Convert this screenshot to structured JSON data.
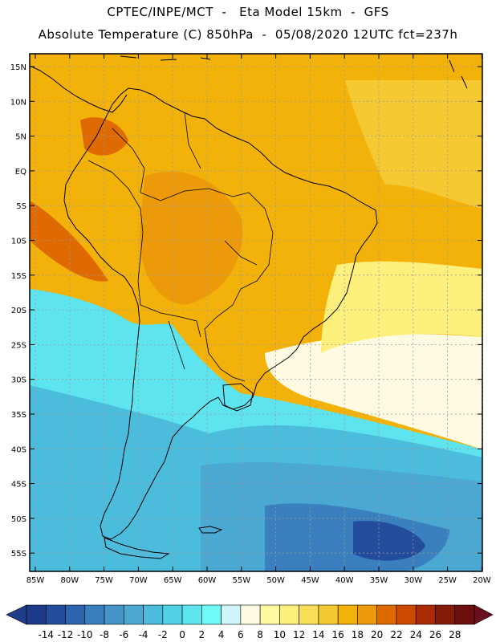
{
  "title": {
    "line1": "CPTEC/INPE/MCT  -   Eta Model 15km  -  GFS",
    "line2": "Absolute Temperature (C) 850hPa  -  05/08/2020 12UTC fct=237h"
  },
  "map": {
    "lat_labels": [
      "15N",
      "10N",
      "5N",
      "EQ",
      "5S",
      "10S",
      "15S",
      "20S",
      "25S",
      "30S",
      "35S",
      "40S",
      "45S",
      "50S",
      "55S"
    ],
    "lon_labels": [
      "85W",
      "80W",
      "75W",
      "70W",
      "65W",
      "60W",
      "55W",
      "50W",
      "45W",
      "40W",
      "35W",
      "30W",
      "25W",
      "20W"
    ],
    "frame_color": "#000000",
    "grid_color": "#9a9a9a",
    "coast_color": "#000000"
  },
  "colorbar": {
    "labels": [
      "-14",
      "-12",
      "-10",
      "-8",
      "-6",
      "-4",
      "-2",
      "0",
      "2",
      "4",
      "6",
      "8",
      "10",
      "12",
      "14",
      "16",
      "18",
      "20",
      "22",
      "24",
      "26",
      "28"
    ],
    "colors": [
      "#1b3b89",
      "#234c9c",
      "#2c64ad",
      "#3a7fbe",
      "#4494c8",
      "#4aa8d3",
      "#4cbcdd",
      "#52d0e6",
      "#5ee4ef",
      "#6ffafa",
      "#cff6fa",
      "#fffbe3",
      "#fffaa0",
      "#fdf07c",
      "#f9df58",
      "#f5c932",
      "#f3b209",
      "#ec9a0a",
      "#e06a02",
      "#cc4a02",
      "#a82b02",
      "#861a0a",
      "#6b0f0f"
    ],
    "under_color": "#1f3e8a",
    "over_color": "#6b0f1f"
  }
}
